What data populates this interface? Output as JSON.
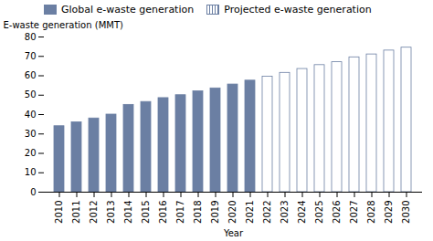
{
  "chart_data": {
    "type": "bar",
    "xlabel": "Year",
    "ylabel": "E-waste generation (MMT)",
    "categories": [
      "2010",
      "2011",
      "2012",
      "2013",
      "2014",
      "2015",
      "2016",
      "2017",
      "2018",
      "2019",
      "2020",
      "2021",
      "2022",
      "2023",
      "2024",
      "2025",
      "2026",
      "2027",
      "2028",
      "2029",
      "2030"
    ],
    "series": [
      {
        "name": "Global e-waste generation",
        "color": "#6b7fa3",
        "values": [
          34,
          36,
          38,
          40,
          45,
          46.5,
          48.5,
          50,
          52,
          53.5,
          55.5,
          57.5,
          null,
          null,
          null,
          null,
          null,
          null,
          null,
          null,
          null
        ]
      },
      {
        "name": "Projected e-waste generation",
        "color": "#6b7fa3",
        "values": [
          null,
          null,
          null,
          null,
          null,
          null,
          null,
          null,
          null,
          null,
          null,
          null,
          59.5,
          61.5,
          63.5,
          65.5,
          67,
          69.5,
          71,
          73,
          74.5
        ]
      }
    ],
    "ylim": [
      0,
      80
    ],
    "yticks": [
      0,
      10,
      20,
      30,
      40,
      50,
      60,
      70,
      80
    ],
    "legend": "upper left"
  }
}
